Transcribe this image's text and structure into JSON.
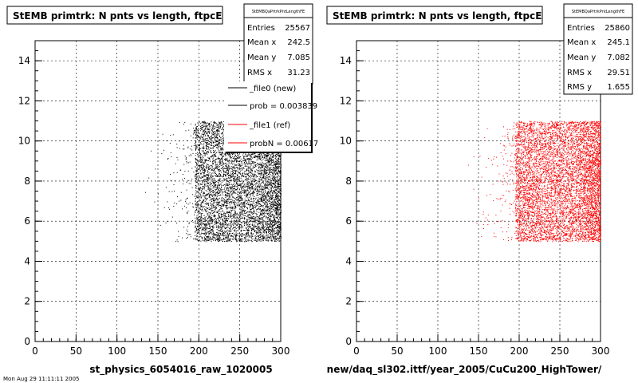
{
  "panels": [
    {
      "title": "StEMB primtrk: N pnts vs length, ftpcE",
      "xlabel": "st_physics_6054016_raw_1020005",
      "stats": {
        "name": "StEMBQaPrtrkPntLengthFE",
        "rows": [
          {
            "label": "Entries",
            "value": "25567"
          },
          {
            "label": "Mean x",
            "value": "242.5"
          },
          {
            "label": "Mean y",
            "value": "7.085"
          },
          {
            "label": "RMS x",
            "value": "31.23"
          }
        ]
      },
      "legend": [
        {
          "label": "_file0 (new)",
          "color": "#000000"
        },
        {
          "label": "prob = 0.003839",
          "color": "#000000"
        },
        {
          "label": "_file1 (ref)",
          "color": "#ff0000"
        },
        {
          "label": "probN = 0.00617",
          "color": "#ff0000"
        }
      ],
      "color": "#000000"
    },
    {
      "title": "StEMB primtrk: N pnts vs length, ftpcE",
      "xlabel": "new/daq_sl302.ittf/year_2005/CuCu200_HighTower/",
      "stats": {
        "name": "StEMBQaPrtrkPntLengthFE",
        "rows": [
          {
            "label": "Entries",
            "value": "25860"
          },
          {
            "label": "Mean x",
            "value": "245.1"
          },
          {
            "label": "Mean y",
            "value": "7.082"
          },
          {
            "label": "RMS x",
            "value": "29.51"
          },
          {
            "label": "RMS y",
            "value": "1.655"
          }
        ]
      },
      "color": "#ff0000"
    }
  ],
  "footer_text": "Mon Aug 29 11:11:11 2005",
  "chart_data": [
    {
      "type": "scatter",
      "title": "StEMB primtrk: N pnts vs length, ftpcE",
      "xlabel": "st_physics_6054016_raw_1020005",
      "ylabel": "",
      "xlim": [
        0,
        300
      ],
      "ylim": [
        0,
        15
      ],
      "xticks": [
        0,
        50,
        100,
        150,
        200,
        250,
        300
      ],
      "yticks": [
        0,
        2,
        4,
        6,
        8,
        10,
        12,
        14
      ],
      "series": [
        {
          "name": "_file0 (new)",
          "color": "#000000",
          "entries": 25567,
          "mean_x": 242.5,
          "mean_y": 7.085,
          "rms_x": 31.23
        }
      ],
      "region": {
        "x_min": 110,
        "x_max": 300,
        "y_min": 5,
        "y_max": 11
      },
      "grid": true,
      "legend_position": "top-right"
    },
    {
      "type": "scatter",
      "title": "StEMB primtrk: N pnts vs length, ftpcE",
      "xlabel": "new/daq_sl302.ittf/year_2005/CuCu200_HighTower/",
      "ylabel": "",
      "xlim": [
        0,
        300
      ],
      "ylim": [
        0,
        15
      ],
      "xticks": [
        0,
        50,
        100,
        150,
        200,
        250,
        300
      ],
      "yticks": [
        0,
        2,
        4,
        6,
        8,
        10,
        12,
        14
      ],
      "series": [
        {
          "name": "_file1 (ref)",
          "color": "#ff0000",
          "entries": 25860,
          "mean_x": 245.1,
          "mean_y": 7.082,
          "rms_x": 29.51,
          "rms_y": 1.655
        }
      ],
      "region": {
        "x_min": 110,
        "x_max": 300,
        "y_min": 5,
        "y_max": 11
      },
      "grid": true,
      "legend_position": "none"
    }
  ]
}
